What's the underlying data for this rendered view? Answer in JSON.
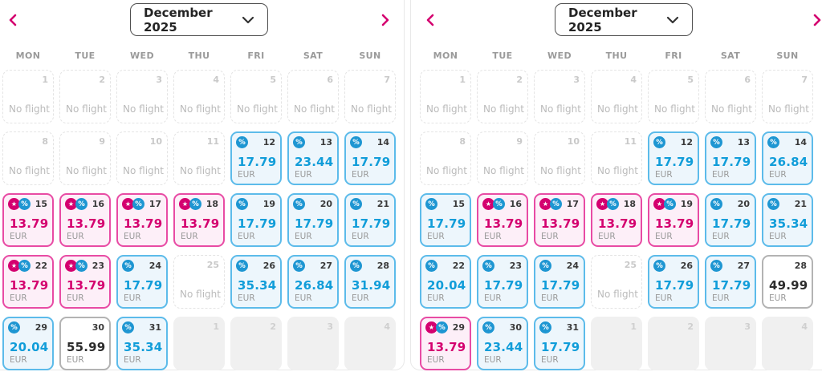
{
  "labels": {
    "no_flight": "No flight"
  },
  "colors": {
    "pink": "#d4006f",
    "pink-border": "#e84ba4",
    "pink-bg": "#fdeff8",
    "blue": "#119dd9",
    "blue-border": "#5cbbea",
    "blue-badge": "#1e96d2",
    "blue-bg": "#edf6fc"
  },
  "panels": [
    {
      "header": {
        "month_label": "December 2025"
      },
      "weekdays": [
        "MON",
        "TUE",
        "WED",
        "THU",
        "FRI",
        "SAT",
        "SUN"
      ],
      "cells": [
        {
          "d": 1,
          "t": "none"
        },
        {
          "d": 2,
          "t": "none"
        },
        {
          "d": 3,
          "t": "none"
        },
        {
          "d": 4,
          "t": "none"
        },
        {
          "d": 5,
          "t": "none"
        },
        {
          "d": 6,
          "t": "none"
        },
        {
          "d": 7,
          "t": "none"
        },
        {
          "d": 8,
          "t": "none"
        },
        {
          "d": 9,
          "t": "none"
        },
        {
          "d": 10,
          "t": "none"
        },
        {
          "d": 11,
          "t": "none"
        },
        {
          "d": 12,
          "t": "blue",
          "p": "17.79",
          "c": "EUR",
          "b": [
            "percent"
          ]
        },
        {
          "d": 13,
          "t": "blue",
          "p": "23.44",
          "c": "EUR",
          "b": [
            "percent"
          ]
        },
        {
          "d": 14,
          "t": "blue",
          "p": "17.79",
          "c": "EUR",
          "b": [
            "percent"
          ]
        },
        {
          "d": 15,
          "t": "pink",
          "p": "13.79",
          "c": "EUR",
          "b": [
            "star",
            "percent"
          ]
        },
        {
          "d": 16,
          "t": "pink",
          "p": "13.79",
          "c": "EUR",
          "b": [
            "star",
            "percent"
          ]
        },
        {
          "d": 17,
          "t": "pink",
          "p": "13.79",
          "c": "EUR",
          "b": [
            "star",
            "percent"
          ]
        },
        {
          "d": 18,
          "t": "pink",
          "p": "13.79",
          "c": "EUR",
          "b": [
            "star",
            "percent"
          ]
        },
        {
          "d": 19,
          "t": "blue",
          "p": "17.79",
          "c": "EUR",
          "b": [
            "percent"
          ]
        },
        {
          "d": 20,
          "t": "blue",
          "p": "17.79",
          "c": "EUR",
          "b": [
            "percent"
          ]
        },
        {
          "d": 21,
          "t": "blue",
          "p": "17.79",
          "c": "EUR",
          "b": [
            "percent"
          ]
        },
        {
          "d": 22,
          "t": "pink",
          "p": "13.79",
          "c": "EUR",
          "b": [
            "star",
            "percent"
          ]
        },
        {
          "d": 23,
          "t": "pink",
          "p": "13.79",
          "c": "EUR",
          "b": [
            "star",
            "percent"
          ]
        },
        {
          "d": 24,
          "t": "blue",
          "p": "17.79",
          "c": "EUR",
          "b": [
            "percent"
          ]
        },
        {
          "d": 25,
          "t": "none"
        },
        {
          "d": 26,
          "t": "blue",
          "p": "35.34",
          "c": "EUR",
          "b": [
            "percent"
          ]
        },
        {
          "d": 27,
          "t": "blue",
          "p": "26.84",
          "c": "EUR",
          "b": [
            "percent"
          ]
        },
        {
          "d": 28,
          "t": "blue",
          "p": "31.94",
          "c": "EUR",
          "b": [
            "percent"
          ]
        },
        {
          "d": 29,
          "t": "blue",
          "p": "20.04",
          "c": "EUR",
          "b": [
            "percent"
          ]
        },
        {
          "d": 30,
          "t": "plain",
          "p": "55.99",
          "c": "EUR",
          "b": []
        },
        {
          "d": 31,
          "t": "blue",
          "p": "35.34",
          "c": "EUR",
          "b": [
            "percent"
          ]
        },
        {
          "d": 1,
          "t": "adj"
        },
        {
          "d": 2,
          "t": "adj"
        },
        {
          "d": 3,
          "t": "adj"
        },
        {
          "d": 4,
          "t": "adj"
        }
      ]
    },
    {
      "header": {
        "month_label": "December 2025"
      },
      "weekdays": [
        "MON",
        "TUE",
        "WED",
        "THU",
        "FRI",
        "SAT",
        "SUN"
      ],
      "cells": [
        {
          "d": 1,
          "t": "none"
        },
        {
          "d": 2,
          "t": "none"
        },
        {
          "d": 3,
          "t": "none"
        },
        {
          "d": 4,
          "t": "none"
        },
        {
          "d": 5,
          "t": "none"
        },
        {
          "d": 6,
          "t": "none"
        },
        {
          "d": 7,
          "t": "none"
        },
        {
          "d": 8,
          "t": "none"
        },
        {
          "d": 9,
          "t": "none"
        },
        {
          "d": 10,
          "t": "none"
        },
        {
          "d": 11,
          "t": "none"
        },
        {
          "d": 12,
          "t": "blue",
          "p": "17.79",
          "c": "EUR",
          "b": [
            "percent"
          ]
        },
        {
          "d": 13,
          "t": "blue",
          "p": "17.79",
          "c": "EUR",
          "b": [
            "percent"
          ]
        },
        {
          "d": 14,
          "t": "blue",
          "p": "26.84",
          "c": "EUR",
          "b": [
            "percent"
          ]
        },
        {
          "d": 15,
          "t": "blue",
          "p": "17.79",
          "c": "EUR",
          "b": [
            "percent"
          ]
        },
        {
          "d": 16,
          "t": "pink",
          "p": "13.79",
          "c": "EUR",
          "b": [
            "star",
            "percent"
          ]
        },
        {
          "d": 17,
          "t": "pink",
          "p": "13.79",
          "c": "EUR",
          "b": [
            "star",
            "percent"
          ]
        },
        {
          "d": 18,
          "t": "pink",
          "p": "13.79",
          "c": "EUR",
          "b": [
            "star",
            "percent"
          ]
        },
        {
          "d": 19,
          "t": "pink",
          "p": "13.79",
          "c": "EUR",
          "b": [
            "star",
            "percent"
          ]
        },
        {
          "d": 20,
          "t": "blue",
          "p": "17.79",
          "c": "EUR",
          "b": [
            "percent"
          ]
        },
        {
          "d": 21,
          "t": "blue",
          "p": "35.34",
          "c": "EUR",
          "b": [
            "percent"
          ]
        },
        {
          "d": 22,
          "t": "blue",
          "p": "20.04",
          "c": "EUR",
          "b": [
            "percent"
          ]
        },
        {
          "d": 23,
          "t": "blue",
          "p": "17.79",
          "c": "EUR",
          "b": [
            "percent"
          ]
        },
        {
          "d": 24,
          "t": "blue",
          "p": "17.79",
          "c": "EUR",
          "b": [
            "percent"
          ]
        },
        {
          "d": 25,
          "t": "none"
        },
        {
          "d": 26,
          "t": "blue",
          "p": "17.79",
          "c": "EUR",
          "b": [
            "percent"
          ]
        },
        {
          "d": 27,
          "t": "blue",
          "p": "17.79",
          "c": "EUR",
          "b": [
            "percent"
          ]
        },
        {
          "d": 28,
          "t": "plain",
          "p": "49.99",
          "c": "EUR",
          "b": []
        },
        {
          "d": 29,
          "t": "pink",
          "p": "13.79",
          "c": "EUR",
          "b": [
            "star",
            "percent"
          ]
        },
        {
          "d": 30,
          "t": "blue",
          "p": "23.44",
          "c": "EUR",
          "b": [
            "percent"
          ]
        },
        {
          "d": 31,
          "t": "blue",
          "p": "17.79",
          "c": "EUR",
          "b": [
            "percent"
          ]
        },
        {
          "d": 1,
          "t": "adj"
        },
        {
          "d": 2,
          "t": "adj"
        },
        {
          "d": 3,
          "t": "adj"
        },
        {
          "d": 4,
          "t": "adj"
        }
      ]
    }
  ]
}
